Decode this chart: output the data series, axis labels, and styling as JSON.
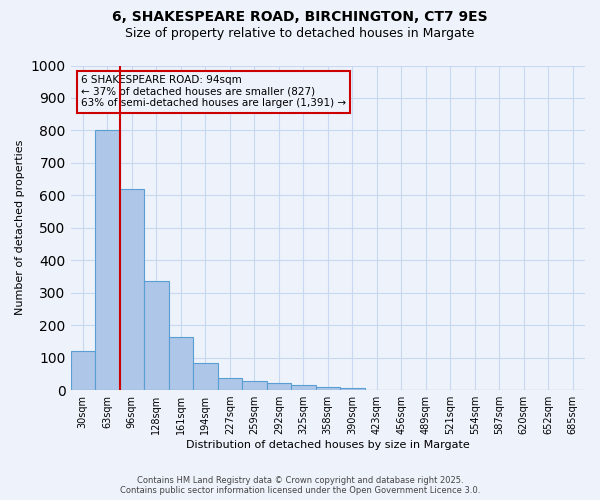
{
  "title": "6, SHAKESPEARE ROAD, BIRCHINGTON, CT7 9ES",
  "subtitle": "Size of property relative to detached houses in Margate",
  "xlabel": "Distribution of detached houses by size in Margate",
  "ylabel": "Number of detached properties",
  "bar_values": [
    120,
    800,
    620,
    335,
    165,
    82,
    38,
    27,
    22,
    15,
    8,
    5,
    0,
    0,
    0,
    0,
    0,
    0,
    0,
    0,
    0
  ],
  "categories": [
    "30sqm",
    "63sqm",
    "96sqm",
    "128sqm",
    "161sqm",
    "194sqm",
    "227sqm",
    "259sqm",
    "292sqm",
    "325sqm",
    "358sqm",
    "390sqm",
    "423sqm",
    "456sqm",
    "489sqm",
    "521sqm",
    "554sqm",
    "587sqm",
    "620sqm",
    "652sqm",
    "685sqm"
  ],
  "bar_color": "#aec6e8",
  "bar_edge_color": "#5a9fd4",
  "property_line_color": "#cc0000",
  "ylim": [
    0,
    1000
  ],
  "yticks": [
    0,
    100,
    200,
    300,
    400,
    500,
    600,
    700,
    800,
    900,
    1000
  ],
  "annotation_text": "6 SHAKESPEARE ROAD: 94sqm\n← 37% of detached houses are smaller (827)\n63% of semi-detached houses are larger (1,391) →",
  "annotation_box_color": "#cc0000",
  "footer1": "Contains HM Land Registry data © Crown copyright and database right 2025.",
  "footer2": "Contains public sector information licensed under the Open Government Licence 3.0.",
  "background_color": "#eef3fb",
  "grid_color": "#c8d8f0"
}
